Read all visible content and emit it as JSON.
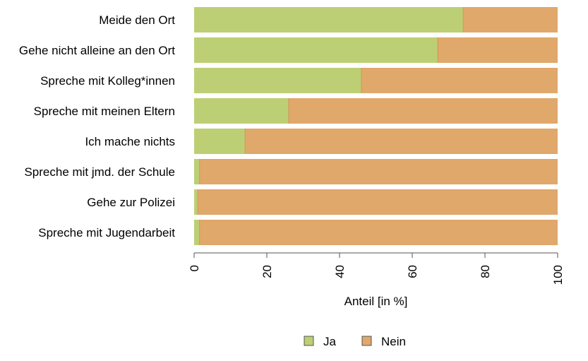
{
  "chart_data": {
    "type": "bar",
    "orientation": "horizontal",
    "stacked": true,
    "categories": [
      "Meide den Ort",
      "Gehe nicht alleine an den Ort",
      "Spreche mit Kolleg*innen",
      "Spreche mit meinen Eltern",
      "Ich mache nichts",
      "Spreche mit jmd. der Schule",
      "Gehe zur Polizei",
      "Spreche mit Jugendarbeit"
    ],
    "series": [
      {
        "name": "Ja",
        "color": "#bdcf75",
        "values": [
          74,
          67,
          46,
          26,
          14,
          1.5,
          1,
          1.5
        ]
      },
      {
        "name": "Nein",
        "color": "#e0a86a",
        "values": [
          26,
          33,
          54,
          74,
          86,
          98.5,
          99,
          98.5
        ]
      }
    ],
    "xlabel": "Anteil [in %]",
    "xlim": [
      0,
      100
    ],
    "xticks": [
      "0",
      "20",
      "40",
      "60",
      "80",
      "100"
    ],
    "tick_label_rotation": "vertical",
    "grid": false,
    "legend_position": "bottom",
    "divider_color": "#cd9a55"
  }
}
